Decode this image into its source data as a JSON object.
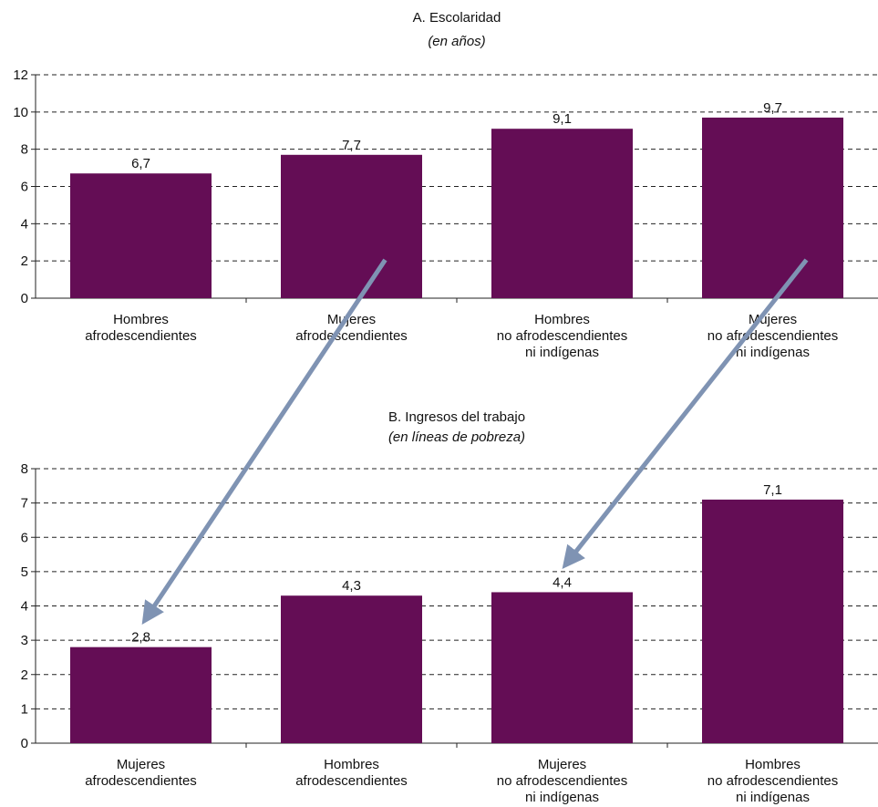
{
  "colors": {
    "bar": "#640d55",
    "arrow": "#7f93b3"
  },
  "chart_data": [
    {
      "type": "bar",
      "title": "A. Escolaridad",
      "subtitle": "(en años)",
      "categories": [
        [
          "Hombres",
          "afrodescendientes"
        ],
        [
          "Mujeres",
          "afrodescendientes"
        ],
        [
          "Hombres",
          "no afrodescendientes",
          "ni indígenas"
        ],
        [
          "Mujeres",
          "no afrodescendientes",
          "ni indígenas"
        ]
      ],
      "values": [
        6.7,
        7.7,
        9.1,
        9.7
      ],
      "value_labels": [
        "6,7",
        "7,7",
        "9,1",
        "9,7"
      ],
      "ylim": [
        0,
        12
      ],
      "yticks": [
        0,
        2,
        4,
        6,
        8,
        10,
        12
      ],
      "grid": true,
      "legend": "none"
    },
    {
      "type": "bar",
      "title": "B. Ingresos del trabajo",
      "subtitle": "(en líneas de pobreza)",
      "categories": [
        [
          "Mujeres",
          "afrodescendientes"
        ],
        [
          "Hombres",
          "afrodescendientes"
        ],
        [
          "Mujeres",
          "no afrodescendientes",
          "ni indígenas"
        ],
        [
          "Hombres",
          "no afrodescendientes",
          "ni indígenas"
        ]
      ],
      "values": [
        2.8,
        4.3,
        4.4,
        7.1
      ],
      "value_labels": [
        "2,8",
        "4,3",
        "4,4",
        "7,1"
      ],
      "ylim": [
        0,
        8
      ],
      "yticks": [
        0,
        1,
        2,
        3,
        4,
        5,
        6,
        7,
        8
      ],
      "grid": true,
      "legend": "none"
    }
  ],
  "annotations": [
    {
      "type": "arrow",
      "from": {
        "chart": 0,
        "category": 1
      },
      "to": {
        "chart": 1,
        "category": 0
      }
    },
    {
      "type": "arrow",
      "from": {
        "chart": 0,
        "category": 3
      },
      "to": {
        "chart": 1,
        "category": 2
      }
    }
  ]
}
